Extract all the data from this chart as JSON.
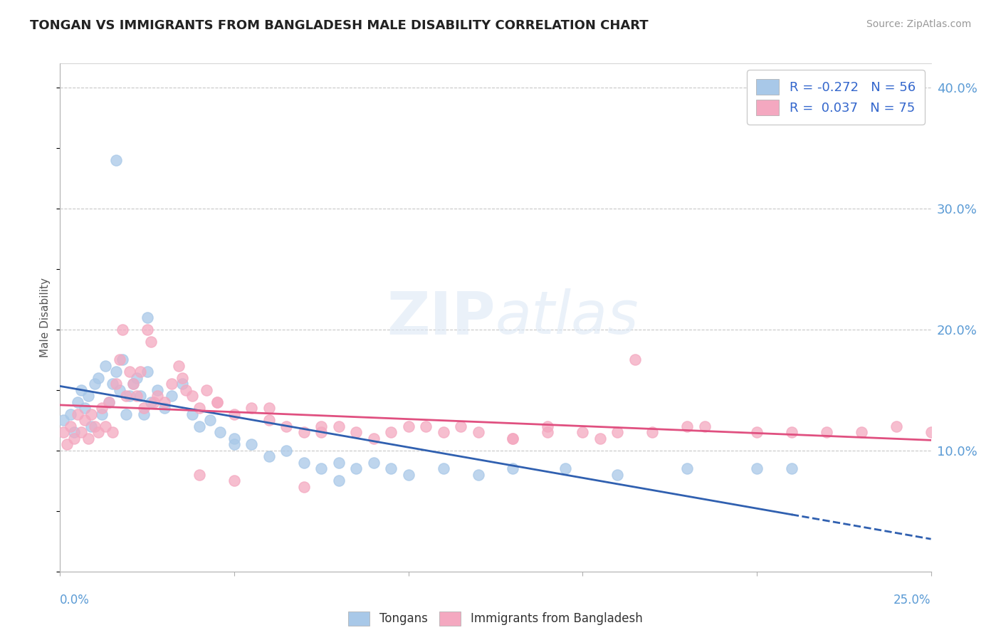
{
  "title": "TONGAN VS IMMIGRANTS FROM BANGLADESH MALE DISABILITY CORRELATION CHART",
  "source": "Source: ZipAtlas.com",
  "ylabel": "Male Disability",
  "xlim": [
    0.0,
    0.25
  ],
  "ylim": [
    0.0,
    0.42
  ],
  "yticks": [
    0.1,
    0.2,
    0.3,
    0.4
  ],
  "ytick_labels": [
    "10.0%",
    "20.0%",
    "30.0%",
    "40.0%"
  ],
  "blue_color": "#a8c8e8",
  "pink_color": "#f4a8c0",
  "trendline_blue_color": "#3060b0",
  "trendline_pink_color": "#e05080",
  "blue_x": [
    0.001,
    0.003,
    0.004,
    0.005,
    0.006,
    0.007,
    0.008,
    0.009,
    0.01,
    0.011,
    0.012,
    0.013,
    0.014,
    0.015,
    0.016,
    0.017,
    0.018,
    0.019,
    0.02,
    0.021,
    0.022,
    0.023,
    0.024,
    0.025,
    0.026,
    0.028,
    0.03,
    0.032,
    0.035,
    0.038,
    0.04,
    0.043,
    0.046,
    0.05,
    0.055,
    0.06,
    0.065,
    0.07,
    0.075,
    0.08,
    0.085,
    0.09,
    0.095,
    0.1,
    0.11,
    0.12,
    0.13,
    0.145,
    0.16,
    0.18,
    0.2,
    0.21,
    0.016,
    0.025,
    0.05,
    0.08
  ],
  "blue_y": [
    0.125,
    0.13,
    0.115,
    0.14,
    0.15,
    0.135,
    0.145,
    0.12,
    0.155,
    0.16,
    0.13,
    0.17,
    0.14,
    0.155,
    0.165,
    0.15,
    0.175,
    0.13,
    0.145,
    0.155,
    0.16,
    0.145,
    0.13,
    0.165,
    0.14,
    0.15,
    0.135,
    0.145,
    0.155,
    0.13,
    0.12,
    0.125,
    0.115,
    0.11,
    0.105,
    0.095,
    0.1,
    0.09,
    0.085,
    0.09,
    0.085,
    0.09,
    0.085,
    0.08,
    0.085,
    0.08,
    0.085,
    0.085,
    0.08,
    0.085,
    0.085,
    0.085,
    0.34,
    0.21,
    0.105,
    0.075
  ],
  "pink_x": [
    0.001,
    0.002,
    0.003,
    0.004,
    0.005,
    0.006,
    0.007,
    0.008,
    0.009,
    0.01,
    0.011,
    0.012,
    0.013,
    0.014,
    0.015,
    0.016,
    0.017,
    0.018,
    0.019,
    0.02,
    0.021,
    0.022,
    0.023,
    0.024,
    0.025,
    0.026,
    0.027,
    0.028,
    0.03,
    0.032,
    0.034,
    0.036,
    0.038,
    0.04,
    0.042,
    0.045,
    0.05,
    0.055,
    0.06,
    0.065,
    0.07,
    0.075,
    0.08,
    0.085,
    0.09,
    0.1,
    0.11,
    0.12,
    0.13,
    0.14,
    0.15,
    0.16,
    0.165,
    0.18,
    0.2,
    0.21,
    0.22,
    0.23,
    0.24,
    0.25,
    0.035,
    0.045,
    0.06,
    0.075,
    0.095,
    0.105,
    0.115,
    0.13,
    0.14,
    0.155,
    0.17,
    0.185,
    0.04,
    0.05,
    0.07
  ],
  "pink_y": [
    0.115,
    0.105,
    0.12,
    0.11,
    0.13,
    0.115,
    0.125,
    0.11,
    0.13,
    0.12,
    0.115,
    0.135,
    0.12,
    0.14,
    0.115,
    0.155,
    0.175,
    0.2,
    0.145,
    0.165,
    0.155,
    0.145,
    0.165,
    0.135,
    0.2,
    0.19,
    0.14,
    0.145,
    0.14,
    0.155,
    0.17,
    0.15,
    0.145,
    0.135,
    0.15,
    0.14,
    0.13,
    0.135,
    0.125,
    0.12,
    0.115,
    0.12,
    0.12,
    0.115,
    0.11,
    0.12,
    0.115,
    0.115,
    0.11,
    0.115,
    0.115,
    0.115,
    0.175,
    0.12,
    0.115,
    0.115,
    0.115,
    0.115,
    0.12,
    0.115,
    0.16,
    0.14,
    0.135,
    0.115,
    0.115,
    0.12,
    0.12,
    0.11,
    0.12,
    0.11,
    0.115,
    0.12,
    0.08,
    0.075,
    0.07
  ]
}
